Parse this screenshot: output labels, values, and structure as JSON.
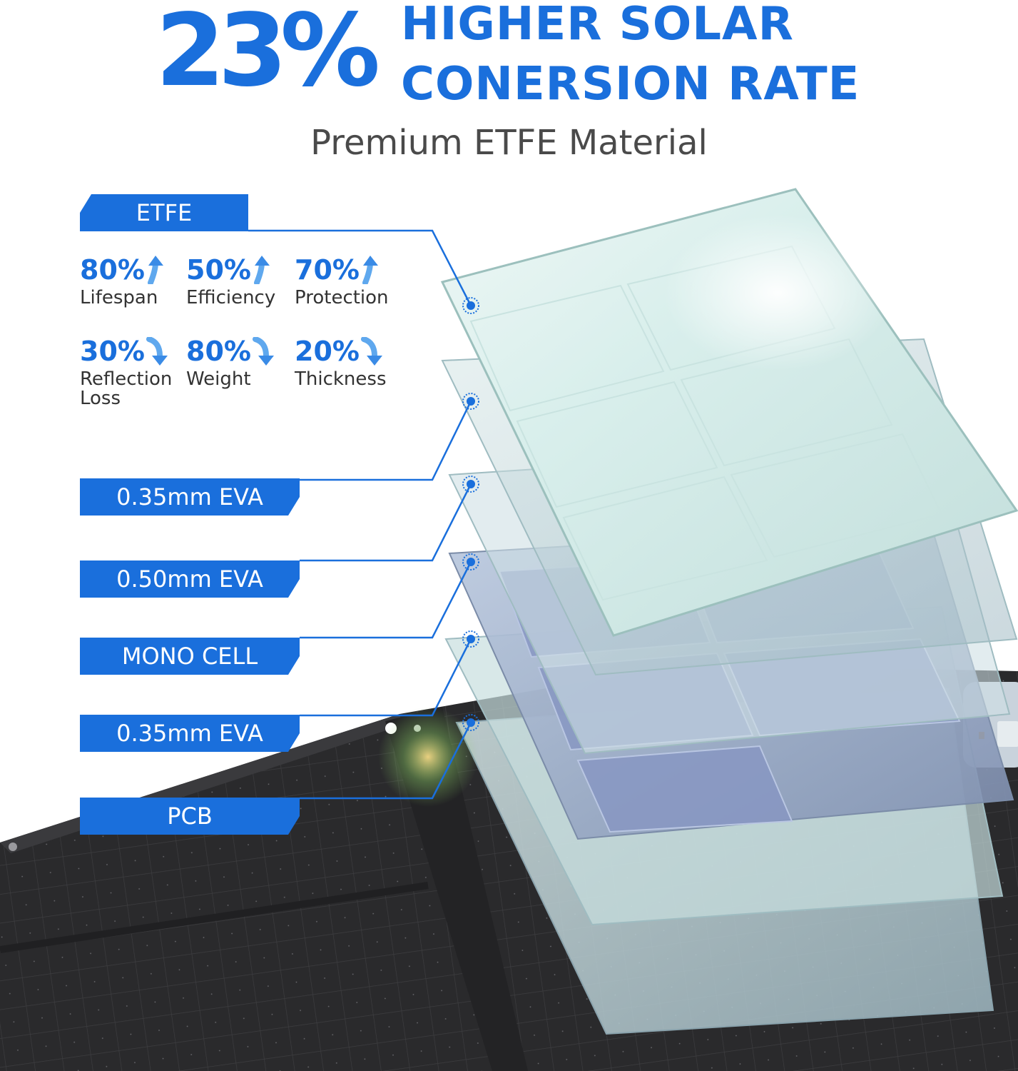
{
  "headline": {
    "percent": "23%",
    "line1": "HIGHER SOLAR",
    "line2": "CONERSION RATE"
  },
  "subtitle": "Premium ETFE Material",
  "etfe_tag": "ETFE",
  "stats": [
    {
      "value": "80%",
      "label": "Lifespan",
      "direction": "up"
    },
    {
      "value": "50%",
      "label": "Efficiency",
      "direction": "up"
    },
    {
      "value": "70%",
      "label": "Protection",
      "direction": "up"
    },
    {
      "value": "30%",
      "label": "Reflection Loss",
      "direction": "down"
    },
    {
      "value": "80%",
      "label": "Weight",
      "direction": "down"
    },
    {
      "value": "20%",
      "label": "Thickness",
      "direction": "down"
    }
  ],
  "layers": [
    {
      "label": "0.35mm EVA"
    },
    {
      "label": "0.50mm EVA"
    },
    {
      "label": "MONO CELL"
    },
    {
      "label": "0.35mm EVA"
    },
    {
      "label": "PCB"
    }
  ],
  "colors": {
    "accent": "#1a6fdc",
    "subtitle": "#4a4a4a",
    "panel_dark": "#2b2b2d"
  }
}
